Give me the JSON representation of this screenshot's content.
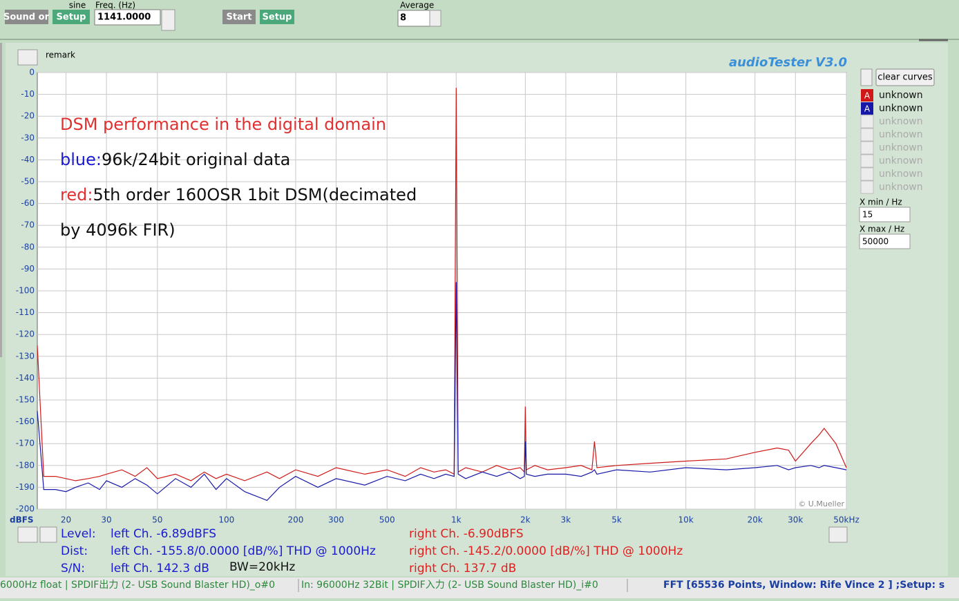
{
  "toolbar": {
    "sound_button": "Sound or",
    "setup_button_1": "Setup",
    "waveform": "sine",
    "freq_label": "Freq. (Hz)",
    "freq_value": "1141.0000",
    "start_button": "Start",
    "setup_button_2": "Setup",
    "average_label": "Average",
    "average_value": "8"
  },
  "panel": {
    "remark": "remark",
    "app_title": "audioTester  V3.0",
    "clear_button": "clear curves",
    "legend_inactive": [
      "unknown",
      "unknown",
      "unknown",
      "unknown",
      "unknown",
      "unknown"
    ],
    "legend_icon": "A",
    "xmin_label": "X min / Hz",
    "xmax_label": "X max / Hz"
  },
  "chart_data": {
    "type": "line",
    "ylabel": "dBFS",
    "xscale": "log",
    "grid": true,
    "annotations": [
      {
        "text": "DSM performance in the digital domain",
        "color": "#e03030"
      },
      {
        "prefix": "blue:",
        "text": "96k/24bit original data",
        "color": "#1a1ad0"
      },
      {
        "prefix": "red:",
        "text": "5th order 160OSR 1bit DSM(decimated",
        "color": "#e03030"
      },
      {
        "text": "by 4096k FIR)",
        "color": "#101010"
      }
    ],
    "credit": "© U.Mueller",
    "xlim": [
      15,
      50000
    ],
    "ylim": [
      -200,
      0
    ],
    "xticks": [
      20,
      30,
      50,
      100,
      200,
      300,
      500,
      {
        "value": 1000,
        "label": "1k"
      },
      {
        "value": 2000,
        "label": "2k"
      },
      {
        "value": 3000,
        "label": "3k"
      },
      {
        "value": 5000,
        "label": "5k"
      },
      {
        "value": 10000,
        "label": "10k"
      },
      {
        "value": 20000,
        "label": "20k"
      },
      {
        "value": 30000,
        "label": "30k"
      },
      {
        "value": 50000,
        "label": "50kHz"
      }
    ],
    "yticks": [
      0,
      -10,
      -20,
      -30,
      -40,
      -50,
      -60,
      -70,
      -80,
      -90,
      -100,
      -110,
      -120,
      -130,
      -140,
      -150,
      -160,
      -170,
      -180,
      -190,
      -200
    ],
    "x": [
      15,
      16,
      18,
      20,
      22,
      25,
      28,
      30,
      35,
      40,
      45,
      50,
      60,
      70,
      80,
      90,
      100,
      120,
      150,
      170,
      200,
      250,
      300,
      400,
      500,
      600,
      700,
      800,
      900,
      980,
      1000,
      1020,
      1100,
      1300,
      1500,
      1700,
      1900,
      1980,
      2000,
      2020,
      2200,
      2500,
      3000,
      3500,
      3900,
      4000,
      4100,
      5000,
      7000,
      10000,
      15000,
      20000,
      25000,
      28000,
      30000,
      35000,
      38000,
      40000,
      45000,
      50000
    ],
    "series": [
      {
        "name": "unknown",
        "color": "#d01818",
        "values": [
          -125,
          -185,
          -185,
          -186,
          -187,
          -186,
          -185,
          -184,
          -182,
          -185,
          -181,
          -186,
          -184,
          -187,
          -183,
          -186,
          -184,
          -187,
          -183,
          -186,
          -182,
          -185,
          -181,
          -184,
          -182,
          -185,
          -181,
          -183,
          -182,
          -184,
          -7,
          -183,
          -181,
          -183,
          -180,
          -182,
          -181,
          -183,
          -153,
          -182,
          -180,
          -182,
          -181,
          -180,
          -182,
          -169,
          -181,
          -180,
          -179,
          -178,
          -177,
          -174,
          -172,
          -173,
          -178,
          -170,
          -166,
          -163,
          -170,
          -181
        ]
      },
      {
        "name": "unknown",
        "color": "#1818a8",
        "values": [
          -155,
          -191,
          -191,
          -192,
          -190,
          -188,
          -191,
          -187,
          -190,
          -186,
          -189,
          -193,
          -186,
          -190,
          -184,
          -191,
          -186,
          -192,
          -196,
          -190,
          -185,
          -190,
          -186,
          -189,
          -185,
          -187,
          -184,
          -186,
          -184,
          -185,
          -96,
          -184,
          -186,
          -183,
          -185,
          -183,
          -186,
          -185,
          -169,
          -184,
          -185,
          -184,
          -184,
          -185,
          -183,
          -182,
          -184,
          -182,
          -183,
          -181,
          -182,
          -181,
          -180,
          -182,
          -181,
          -180,
          -181,
          -180,
          -181,
          -182
        ]
      }
    ]
  },
  "results": {
    "level_label": "Level:",
    "level_left": "left Ch. -6.89dBFS",
    "level_right": "right Ch. -6.90dBFS",
    "dist_label": "Dist:",
    "dist_left": "left Ch. -155.8/0.0000 [dB/%] THD @ 1000Hz",
    "dist_right": "right Ch. -145.2/0.0000 [dB/%] THD @ 1000Hz",
    "sn_label": "S/N:",
    "sn_left": "left Ch. 142.3 dB",
    "bandwidth": "BW=20kHz",
    "sn_right": "right Ch. 137.7 dB"
  },
  "status": {
    "output": "6000Hz float  | SPDIF出力 (2- USB Sound Blaster HD)_o#0",
    "input": "In: 96000Hz 32Bit  | SPDIF入力 (2- USB Sound Blaster HD)_i#0",
    "fft": "FFT [65536 Points, Window: Rife Vince 2 ]  ;Setup: s"
  }
}
